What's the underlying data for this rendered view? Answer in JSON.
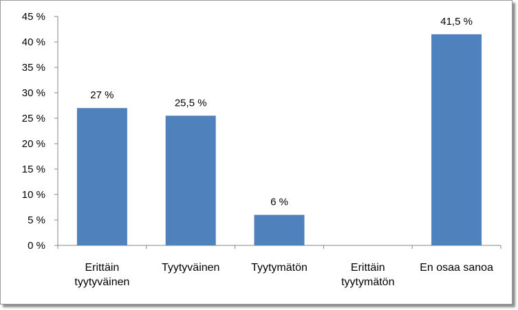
{
  "chart_data": {
    "type": "bar",
    "title": "",
    "xlabel": "",
    "ylabel": "",
    "categories": [
      [
        "Erittäin",
        "tyytyväinen"
      ],
      [
        "Tyytyväinen"
      ],
      [
        "Tyytymätön"
      ],
      [
        "Erittäin",
        "tyytymätön"
      ],
      [
        "En osaa sanoa"
      ]
    ],
    "values": [
      27,
      25.5,
      6,
      0,
      41.5
    ],
    "data_labels": [
      "27 %",
      "25,5 %",
      "6 %",
      "",
      "41,5 %"
    ],
    "ylim": [
      0,
      45
    ],
    "yticks": [
      0,
      5,
      10,
      15,
      20,
      25,
      30,
      35,
      40,
      45
    ],
    "ytick_labels": [
      "0 %",
      "5 %",
      "10 %",
      "15 %",
      "20 %",
      "25 %",
      "30 %",
      "35 %",
      "40 %",
      "45 %"
    ],
    "grid": false,
    "legend": "none",
    "colors": {
      "bar": "#4f81bd",
      "axis": "#868686"
    }
  }
}
